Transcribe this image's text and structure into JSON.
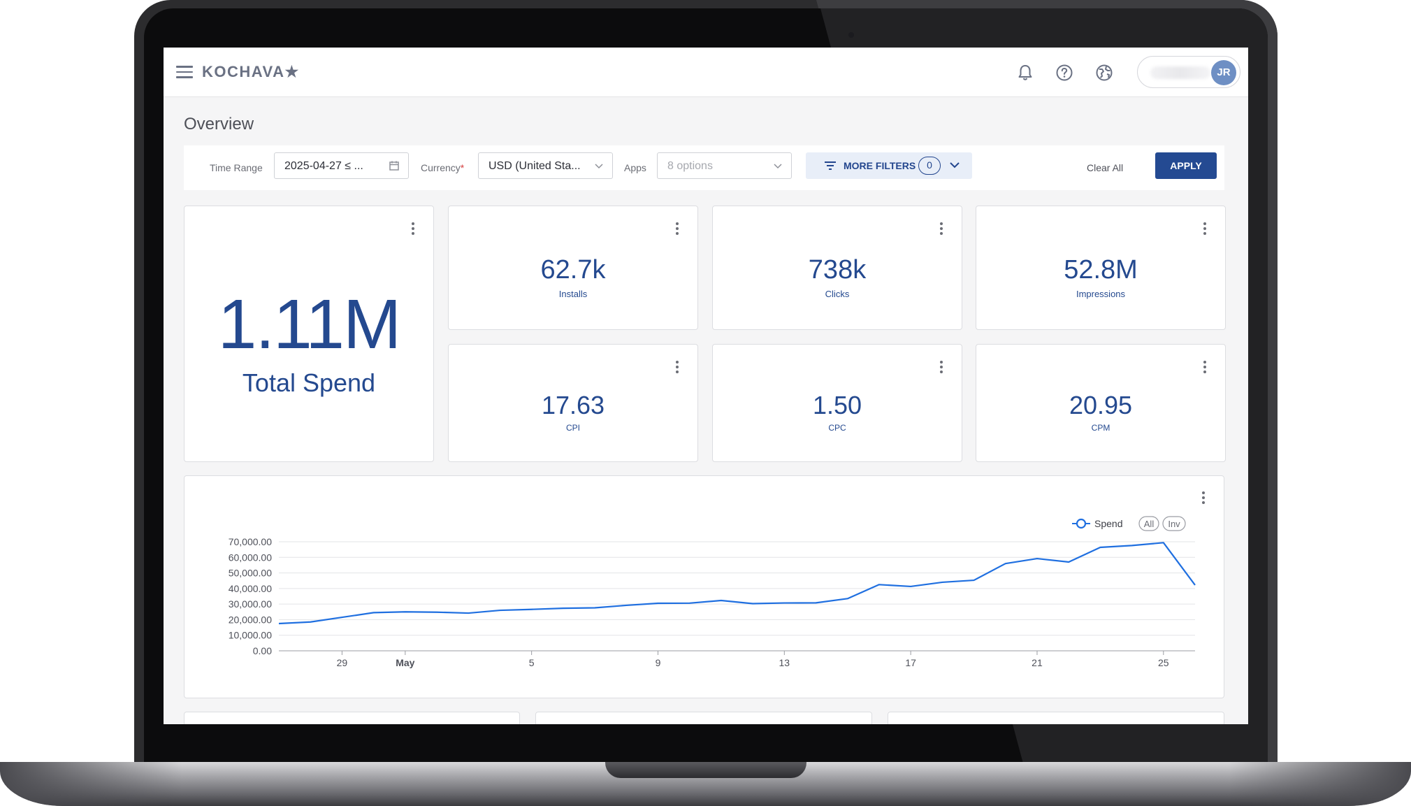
{
  "app": {
    "brand": "KOCHAVA★",
    "page_title": "Overview",
    "user_initials": "JR"
  },
  "icons": {
    "menu": "hamburger-menu-icon",
    "bell": "bell-icon",
    "help": "help-circle-icon",
    "globe": "globe-icon",
    "calendar": "calendar-icon",
    "filter": "filter-icon",
    "chevron": "chevron-down-icon",
    "kebab": "more-vertical-icon"
  },
  "colors": {
    "accent": "#244a92",
    "kpi_text": "#24498f",
    "line": "#1f6fe0"
  },
  "filters": {
    "time_range_label": "Time Range",
    "time_range_value": "2025-04-27 ≤ ...",
    "currency_label": "Currency",
    "currency_required": "*",
    "currency_value": "USD (United Sta...",
    "apps_label": "Apps",
    "apps_placeholder": "8 options",
    "more_filters_label": "MORE FILTERS",
    "more_filters_count": "0",
    "clear_all_label": "Clear All",
    "apply_label": "APPLY"
  },
  "kpis": {
    "total_spend": {
      "value": "1.11M",
      "label": "Total Spend"
    },
    "installs": {
      "value": "62.7k",
      "label": "Installs"
    },
    "clicks": {
      "value": "738k",
      "label": "Clicks"
    },
    "impressions": {
      "value": "52.8M",
      "label": "Impressions"
    },
    "cpi": {
      "value": "17.63",
      "label": "CPI"
    },
    "cpc": {
      "value": "1.50",
      "label": "CPC"
    },
    "cpm": {
      "value": "20.95",
      "label": "CPM"
    }
  },
  "legend": {
    "series_label": "Spend",
    "all_label": "All",
    "inv_label": "Inv"
  },
  "chart_data": {
    "type": "line",
    "legend_position": "top-right",
    "grid": true,
    "ylim": [
      0,
      70000
    ],
    "y_ticks": [
      "70,000.00",
      "60,000.00",
      "50,000.00",
      "40,000.00",
      "30,000.00",
      "20,000.00",
      "10,000.00",
      "0.00"
    ],
    "y_tick_values": [
      70000,
      60000,
      50000,
      40000,
      30000,
      20000,
      10000,
      0
    ],
    "x_ticks": [
      {
        "label": "29",
        "day": 2,
        "bold": false
      },
      {
        "label": "May",
        "day": 4,
        "bold": true
      },
      {
        "label": "5",
        "day": 8,
        "bold": false
      },
      {
        "label": "9",
        "day": 12,
        "bold": false
      },
      {
        "label": "13",
        "day": 16,
        "bold": false
      },
      {
        "label": "17",
        "day": 20,
        "bold": false
      },
      {
        "label": "21",
        "day": 24,
        "bold": false
      },
      {
        "label": "25",
        "day": 28,
        "bold": false
      }
    ],
    "x_range": [
      0,
      29
    ],
    "x": [
      "2025-04-27",
      "2025-04-28",
      "2025-04-29",
      "2025-04-30",
      "2025-05-01",
      "2025-05-02",
      "2025-05-03",
      "2025-05-04",
      "2025-05-05",
      "2025-05-06",
      "2025-05-07",
      "2025-05-08",
      "2025-05-09",
      "2025-05-10",
      "2025-05-11",
      "2025-05-12",
      "2025-05-13",
      "2025-05-14",
      "2025-05-15",
      "2025-05-16",
      "2025-05-17",
      "2025-05-18",
      "2025-05-19",
      "2025-05-20",
      "2025-05-21",
      "2025-05-22",
      "2025-05-23",
      "2025-05-24",
      "2025-05-25",
      "2025-05-26"
    ],
    "series": [
      {
        "name": "Spend",
        "values": [
          17500,
          18500,
          21500,
          24500,
          25000,
          24800,
          24200,
          26000,
          26600,
          27300,
          27600,
          29200,
          30500,
          30600,
          32300,
          30300,
          30700,
          30800,
          33500,
          42500,
          41300,
          44000,
          45300,
          56000,
          59200,
          57000,
          66400,
          67600,
          69400,
          42200
        ]
      }
    ]
  }
}
